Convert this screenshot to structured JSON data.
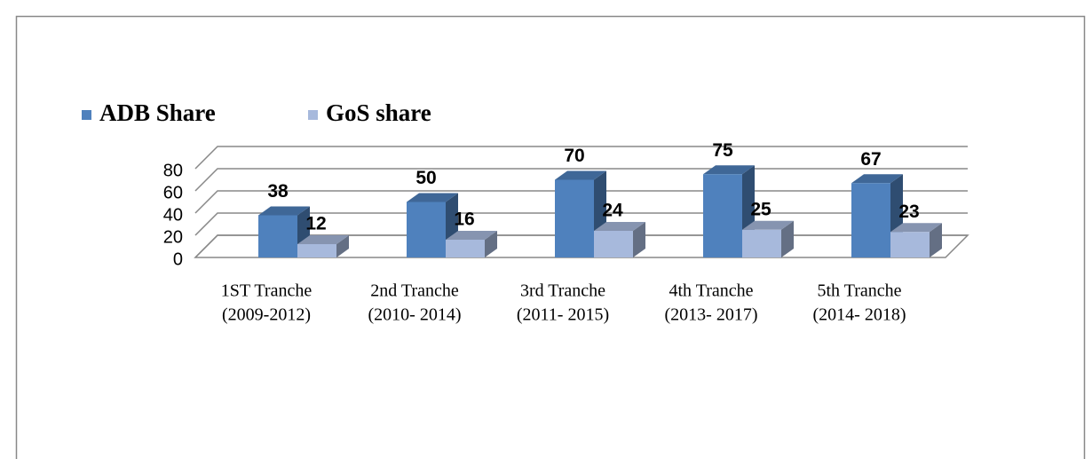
{
  "chart_data": {
    "type": "bar",
    "categories": [
      [
        "1ST Tranche",
        "(2009-2012)"
      ],
      [
        "2nd Tranche",
        "(2010- 2014)"
      ],
      [
        "3rd  Tranche",
        "(2011- 2015)"
      ],
      [
        "4th Tranche",
        "(2013- 2017)"
      ],
      [
        "5th Tranche",
        "(2014- 2018)"
      ]
    ],
    "series": [
      {
        "name": "ADB Share",
        "color": "#4f81bd",
        "values": [
          38,
          50,
          70,
          75,
          67
        ]
      },
      {
        "name": "GoS share",
        "color": "#a7b9dc",
        "values": [
          12,
          16,
          24,
          25,
          23
        ]
      }
    ],
    "ylim": [
      0,
      80
    ],
    "yticks": [
      0,
      20,
      40,
      60,
      80
    ],
    "grid": true,
    "legend": "top"
  }
}
